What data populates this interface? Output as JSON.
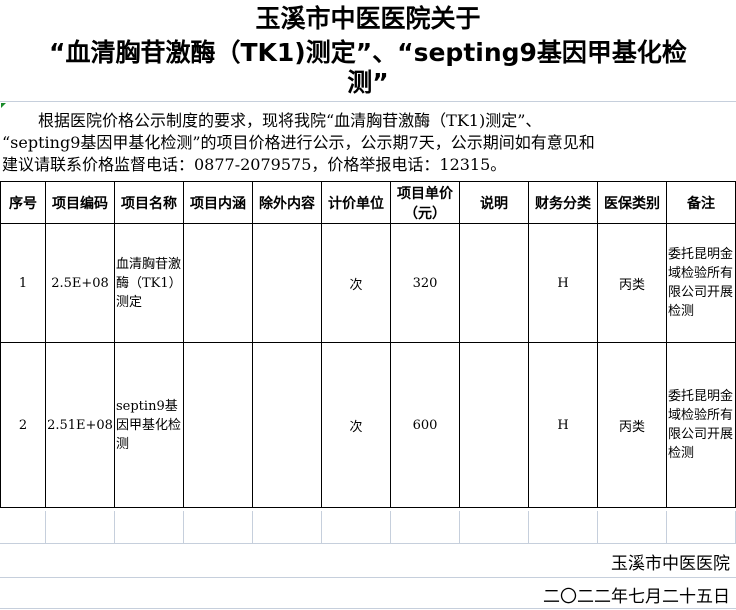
{
  "title": {
    "line1": "玉溪市中医医院关于",
    "line2": "“血清胸苷激酶（TK1)测定”、“septing9基因甲基化检",
    "line3": "测”"
  },
  "intro": {
    "line1": "根据医院价格公示制度的要求，现将我院“血清胸苷激酶（TK1)测定”、",
    "line2": "“septing9基因甲基化检测”的项目价格进行公示，公示期7天，公示期间如有意见和",
    "line3": "建议请联系价格监督电话：0877-2079575，价格举报电话：12315。"
  },
  "table": {
    "headers": [
      "序号",
      "项目编码",
      "项目名称",
      "项目内涵",
      "除外内容",
      "计价单位",
      "项目单价（元）",
      "说明",
      "财务分类",
      "医保类别",
      "备注"
    ],
    "rows": [
      [
        "1",
        "2.5E+08",
        "血清胸苷激酶（TK1）测定",
        "",
        "",
        "次",
        "320",
        "",
        "H",
        "丙类",
        "委托昆明金域检验所有限公司开展检测"
      ],
      [
        "2",
        "2.51E+08",
        "septin9基因甲基化检测",
        "",
        "",
        "次",
        "600",
        "",
        "H",
        "丙类",
        "委托昆明金域检验所有限公司开展检测"
      ]
    ]
  },
  "footer": {
    "org": "玉溪市中医医院",
    "date": "二〇二二年七月二十五日"
  }
}
